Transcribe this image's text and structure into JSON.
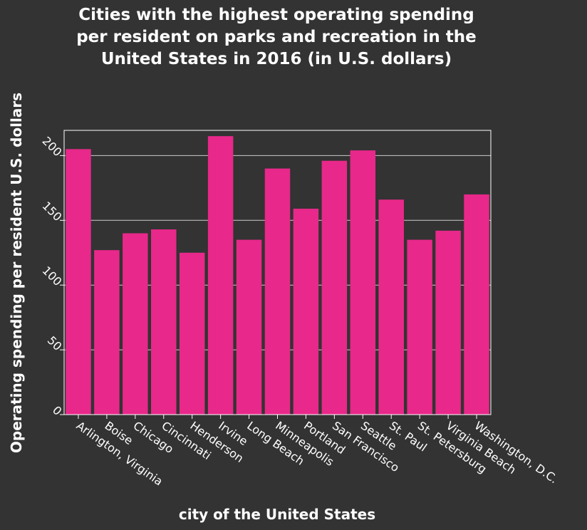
{
  "chart_data": {
    "type": "bar",
    "title_lines": [
      "Cities with the highest operating spending",
      "per resident on parks and recreation in the",
      "United States in 2016 (in U.S. dollars)"
    ],
    "xlabel": "city of the United States",
    "ylabel": "Operating spending per resident U.S. dollars",
    "categories": [
      "Arlington, Virginia",
      "Boise",
      "Chicago",
      "Cincinnati",
      "Henderson",
      "Irvine",
      "Long Beach",
      "Minneapolis",
      "Portland",
      "San Francisco",
      "Seattle",
      "St. Paul",
      "St. Petersburg",
      "Virginia Beach",
      "Washington, D.C."
    ],
    "values": [
      205,
      127,
      140,
      143,
      125,
      215,
      135,
      190,
      159,
      196,
      204,
      166,
      135,
      142,
      170
    ],
    "yticks": [
      0,
      50,
      100,
      150,
      200
    ],
    "ylim": [
      0,
      220
    ],
    "grid": true,
    "colors": {
      "bar": "#e8288a",
      "background": "#333333",
      "grid": "#cccccc",
      "text": "#ffffff"
    }
  }
}
